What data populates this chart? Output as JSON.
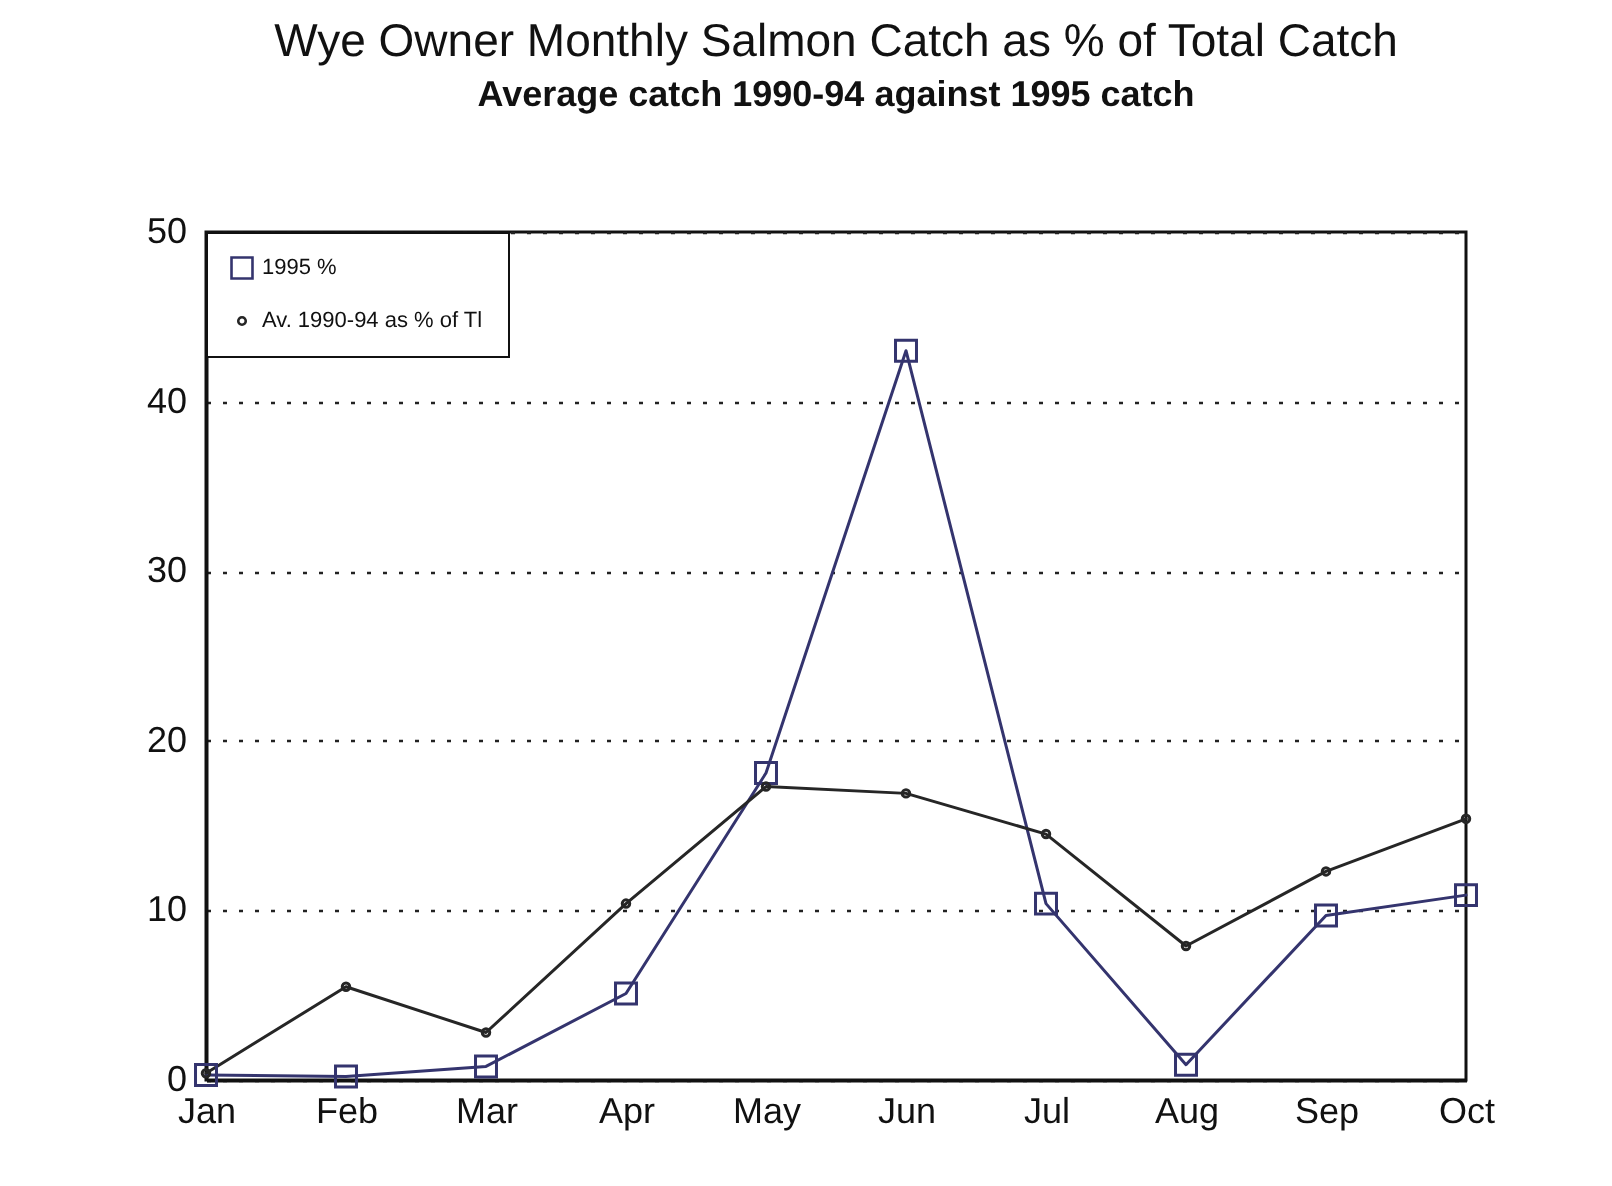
{
  "chart_data": {
    "type": "line",
    "title": "Wye Owner Monthly Salmon Catch as % of Total Catch",
    "subtitle": "Average catch 1990-94 against 1995 catch",
    "categories": [
      "Jan",
      "Feb",
      "Mar",
      "Apr",
      "May",
      "Jun",
      "Jul",
      "Aug",
      "Sep",
      "Oct"
    ],
    "series": [
      {
        "name": "1995 %",
        "color": "#34346e",
        "marker": "square",
        "values": [
          0.3,
          0.2,
          0.8,
          5.1,
          18.1,
          43.0,
          10.4,
          0.9,
          9.7,
          10.9
        ]
      },
      {
        "name": "Av. 1990-94 as % of Tl",
        "color": "#262626",
        "marker": "circle",
        "values": [
          0.4,
          5.5,
          2.8,
          10.4,
          17.3,
          16.9,
          14.5,
          7.9,
          12.3,
          15.4
        ]
      }
    ],
    "ylim": [
      0,
      50
    ],
    "yticks": [
      0,
      10,
      20,
      30,
      40,
      50
    ],
    "grid": "y",
    "legend": "top left",
    "line_style": "solid"
  }
}
